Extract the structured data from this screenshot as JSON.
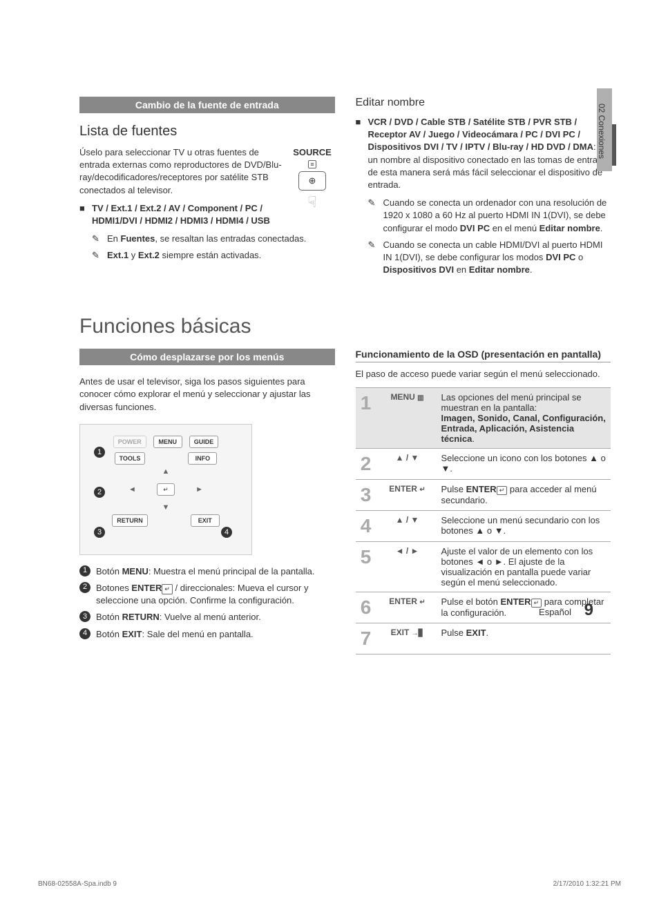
{
  "sideTab": "02  Conexiones",
  "sec1": {
    "headerBar": "Cambio de la fuente de entrada",
    "listTitle": "Lista de fuentes",
    "listIntro": "Úselo para seleccionar TV u otras fuentes de entrada externas como reproductores de DVD/Blu-ray/decodificadores/receptores por satélite STB conectados al televisor.",
    "sourceLabel": "SOURCE",
    "bullet1": "TV / Ext.1 / Ext.2 / AV / Component / PC / HDMI1/DVI / HDMI2 / HDMI3 / HDMI4 / USB",
    "note1a": "En ",
    "note1b": "Fuentes",
    "note1c": ", se resaltan las entradas conectadas.",
    "note2a": "Ext.1",
    "note2b": " y ",
    "note2c": "Ext.2",
    "note2d": " siempre están activadas.",
    "editTitle": "Editar nombre",
    "editBold": "VCR / DVD / Cable STB / Satélite STB / PVR STB / Receptor AV / Juego / Videocámara / PC / DVI PC / Dispositivos DVI / TV / IPTV / Blu-ray / HD DVD / DMA",
    "editRest": ": Dé un nombre al dispositivo conectado en las tomas de entrada; de esta manera será más fácil seleccionar el dispositivo de entrada.",
    "editNote1a": "Cuando se conecta un ordenador con una resolución de 1920 x 1080 a 60 Hz al puerto HDMI IN 1(DVI), se debe configurar el modo ",
    "editNote1b": "DVI PC",
    "editNote1c": " en el menú ",
    "editNote1d": "Editar nombre",
    "editNote1e": ".",
    "editNote2a": "Cuando se conecta un cable HDMI/DVI al puerto HDMI IN 1(DVI), se debe configurar los modos ",
    "editNote2b": "DVI PC",
    "editNote2c": " o ",
    "editNote2d": "Dispositivos DVI",
    "editNote2e": " en ",
    "editNote2f": "Editar nombre",
    "editNote2g": "."
  },
  "sec2": {
    "mainTitle": "Funciones básicas",
    "headerBar": "Cómo desplazarse por los menús",
    "intro": "Antes de usar el televisor, siga los pasos siguientes para conocer cómo explorar el menú y seleccionar y ajustar las diversas funciones.",
    "remote": {
      "power": "POWER",
      "menu": "MENU",
      "guide": "GUIDE",
      "tools": "TOOLS",
      "info": "INFO",
      "return": "RETURN",
      "exit": "EXIT",
      "enter": "↵"
    },
    "legend": [
      {
        "n": "1",
        "bold": "MENU",
        "pre": "Botón ",
        "post": ": Muestra el menú principal de la pantalla."
      },
      {
        "n": "2",
        "bold": "ENTER",
        "pre": "Botones ",
        "post": " / direccionales: Mueva el cursor y seleccione una opción. Confirme la configuración.",
        "icon": "↵"
      },
      {
        "n": "3",
        "bold": "RETURN",
        "pre": "Botón ",
        "post": ": Vuelve al menú anterior."
      },
      {
        "n": "4",
        "bold": "EXIT",
        "pre": "Botón ",
        "post": ": Sale del menú en pantalla."
      }
    ],
    "osdTitle": "Funcionamiento de la OSD (presentación en pantalla)",
    "osdIntro": "El paso de acceso puede variar según el menú seleccionado.",
    "steps": [
      {
        "n": "1",
        "btn": "MENU",
        "icon": "▥",
        "text": "Las opciones del menú principal se muestran en la pantalla:",
        "bold": "Imagen, Sonido, Canal, Configuración, Entrada, Aplicación, Asistencia técnica",
        "suffix": ".",
        "highlight": true
      },
      {
        "n": "2",
        "btn": "▲ / ▼",
        "text": "Seleccione un icono con los botones ▲ o ▼."
      },
      {
        "n": "3",
        "btn": "ENTER",
        "icon": "↵",
        "textPre": "Pulse ",
        "textBold": "ENTER",
        "textIcon": "↵",
        "textPost": " para acceder al menú secundario."
      },
      {
        "n": "4",
        "btn": "▲ / ▼",
        "text": "Seleccione un menú secundario con los botones ▲ o ▼."
      },
      {
        "n": "5",
        "btn": "◄ / ►",
        "text": "Ajuste el valor de un elemento con los botones ◄ o ►. El ajuste de la visualización en pantalla puede variar según el menú seleccionado."
      },
      {
        "n": "6",
        "btn": "ENTER",
        "icon": "↵",
        "textPre": "Pulse el botón ",
        "textBold": "ENTER",
        "textIcon": "↵",
        "textPost": " para completar la configuración."
      },
      {
        "n": "7",
        "btn": "EXIT",
        "icon": "→▊",
        "textPre": "Pulse ",
        "textBold": "EXIT",
        "textPost": "."
      }
    ]
  },
  "footer": {
    "lang": "Español",
    "page": "9",
    "docLeft": "BN68-02558A-Spa.indb   9",
    "docRight": "2/17/2010   1:32:21 PM"
  }
}
